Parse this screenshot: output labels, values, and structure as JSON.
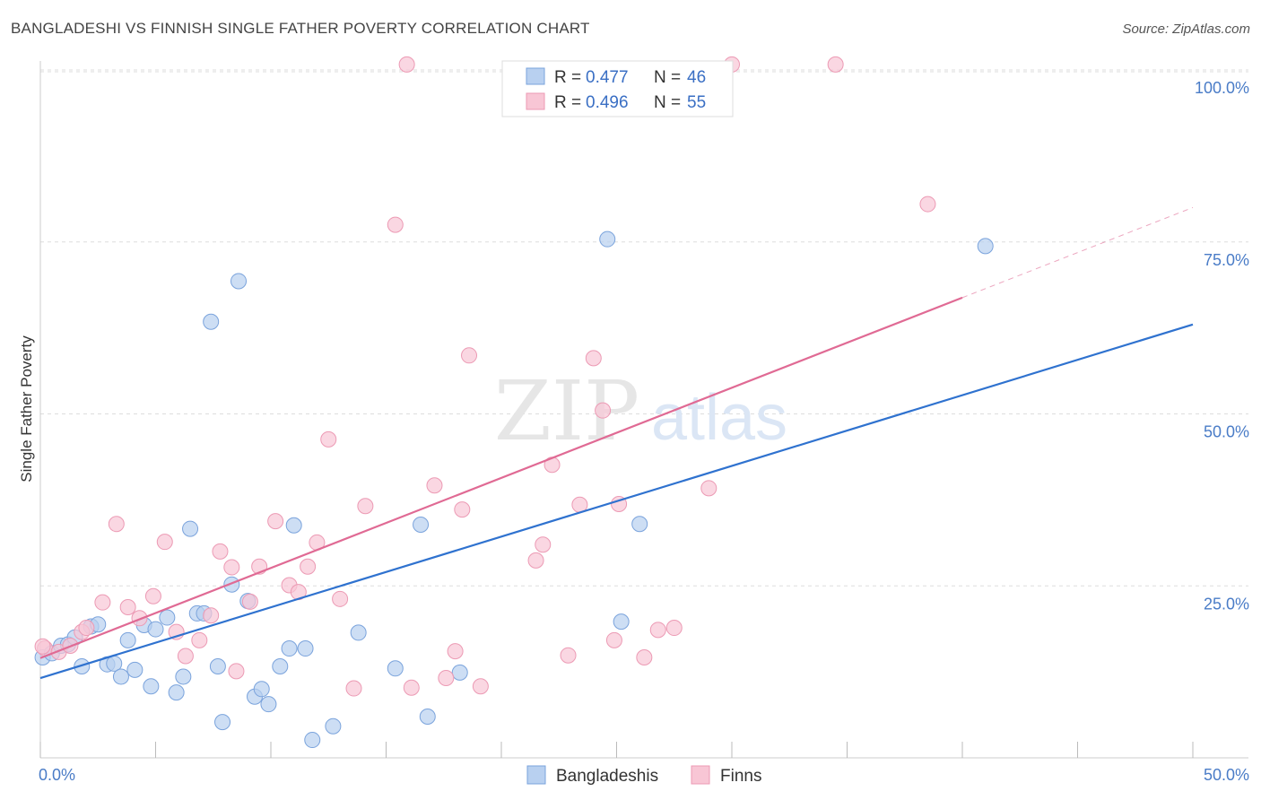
{
  "title": "BANGLADESHI VS FINNISH SINGLE FATHER POVERTY CORRELATION CHART",
  "source": "Source: ZipAtlas.com",
  "watermark": {
    "zip": "ZIP",
    "atlas": "atlas"
  },
  "colors": {
    "blue_fill": "#b8d0f0",
    "blue_stroke": "#7aa3dc",
    "blue_line": "#2f72cf",
    "pink_fill": "#f8c6d5",
    "pink_stroke": "#ec9ab4",
    "pink_line": "#e06a94",
    "axis_text": "#4a7cc7",
    "grid": "#dddddd"
  },
  "legend": {
    "rows": [
      {
        "r_label": "R = ",
        "r_value": "0.477",
        "n_label": "N = ",
        "n_value": "46"
      },
      {
        "r_label": "R = ",
        "r_value": "0.496",
        "n_label": "N = ",
        "n_value": "55"
      }
    ]
  },
  "chart_data": {
    "type": "scatter",
    "title": "BANGLADESHI VS FINNISH SINGLE FATHER POVERTY CORRELATION CHART",
    "xlabel": "",
    "ylabel": "Single Father Poverty",
    "xlim": [
      0,
      50
    ],
    "ylim": [
      0,
      100
    ],
    "x_tick_labels": [
      "0.0%",
      "50.0%"
    ],
    "y_ticks": [
      25,
      50,
      75,
      100
    ],
    "y_tick_labels": [
      "25.0%",
      "50.0%",
      "75.0%",
      "100.0%"
    ],
    "grid": true,
    "legend_position": "top-center",
    "series": [
      {
        "name": "Bangladeshis",
        "color": "#b8d0f0",
        "trend": {
          "x0": 0,
          "y0": 11.6,
          "x1": 50,
          "y1": 63
        },
        "points": [
          [
            0.1,
            14.6
          ],
          [
            0.5,
            15.2
          ],
          [
            0.9,
            16.3
          ],
          [
            1.2,
            16.5
          ],
          [
            1.5,
            17.5
          ],
          [
            1.8,
            13.3
          ],
          [
            2.2,
            19.1
          ],
          [
            2.5,
            19.4
          ],
          [
            2.9,
            13.6
          ],
          [
            3.2,
            13.7
          ],
          [
            3.5,
            11.8
          ],
          [
            3.8,
            17.1
          ],
          [
            4.1,
            12.8
          ],
          [
            4.5,
            19.3
          ],
          [
            4.8,
            10.4
          ],
          [
            5.0,
            18.7
          ],
          [
            5.5,
            20.4
          ],
          [
            5.9,
            9.5
          ],
          [
            6.2,
            11.8
          ],
          [
            6.5,
            33.3
          ],
          [
            6.8,
            21.0
          ],
          [
            7.1,
            21.0
          ],
          [
            7.4,
            63.4
          ],
          [
            7.7,
            13.3
          ],
          [
            7.9,
            5.2
          ],
          [
            8.3,
            25.2
          ],
          [
            8.6,
            69.3
          ],
          [
            9.0,
            22.8
          ],
          [
            9.3,
            8.9
          ],
          [
            9.6,
            10.0
          ],
          [
            9.9,
            7.8
          ],
          [
            10.4,
            13.3
          ],
          [
            10.8,
            15.9
          ],
          [
            11.0,
            33.8
          ],
          [
            11.5,
            15.9
          ],
          [
            11.8,
            2.6
          ],
          [
            12.7,
            4.6
          ],
          [
            13.8,
            18.2
          ],
          [
            15.4,
            13.0
          ],
          [
            16.5,
            33.9
          ],
          [
            16.8,
            6.0
          ],
          [
            18.2,
            12.4
          ],
          [
            24.6,
            75.4
          ],
          [
            25.2,
            19.8
          ],
          [
            26.0,
            34.0
          ],
          [
            41.0,
            74.4
          ]
        ]
      },
      {
        "name": "Finns",
        "color": "#f8c6d5",
        "trend": {
          "x0": 0,
          "y0": 14.5,
          "x1": 50,
          "y1": 80
        },
        "trend_solid_until_x": 40,
        "points": [
          [
            0.2,
            15.9
          ],
          [
            0.8,
            15.4
          ],
          [
            1.3,
            16.3
          ],
          [
            1.8,
            18.3
          ],
          [
            2.0,
            18.9
          ],
          [
            2.7,
            22.6
          ],
          [
            3.3,
            34.0
          ],
          [
            3.8,
            21.9
          ],
          [
            4.3,
            20.3
          ],
          [
            4.9,
            23.5
          ],
          [
            5.4,
            31.4
          ],
          [
            5.9,
            18.3
          ],
          [
            6.3,
            14.8
          ],
          [
            6.9,
            17.1
          ],
          [
            7.4,
            20.7
          ],
          [
            7.8,
            30.0
          ],
          [
            8.3,
            27.7
          ],
          [
            8.5,
            12.6
          ],
          [
            9.1,
            22.7
          ],
          [
            9.5,
            27.8
          ],
          [
            10.2,
            34.4
          ],
          [
            10.8,
            25.1
          ],
          [
            11.2,
            24.1
          ],
          [
            11.6,
            27.8
          ],
          [
            12.0,
            31.3
          ],
          [
            12.5,
            46.3
          ],
          [
            13.0,
            23.1
          ],
          [
            13.6,
            10.1
          ],
          [
            14.1,
            36.6
          ],
          [
            15.4,
            77.5
          ],
          [
            15.9,
            100.8
          ],
          [
            16.1,
            10.2
          ],
          [
            17.1,
            39.6
          ],
          [
            17.6,
            11.6
          ],
          [
            18.0,
            15.5
          ],
          [
            18.3,
            36.1
          ],
          [
            18.6,
            58.5
          ],
          [
            19.1,
            10.4
          ],
          [
            21.5,
            28.7
          ],
          [
            21.8,
            31.0
          ],
          [
            22.2,
            42.6
          ],
          [
            22.9,
            14.9
          ],
          [
            23.4,
            36.8
          ],
          [
            24.0,
            58.1
          ],
          [
            24.4,
            50.5
          ],
          [
            24.9,
            17.1
          ],
          [
            25.1,
            36.9
          ],
          [
            26.2,
            14.6
          ],
          [
            26.8,
            18.6
          ],
          [
            27.5,
            18.9
          ],
          [
            29.0,
            39.2
          ],
          [
            30.0,
            100.8
          ],
          [
            34.5,
            100.8
          ],
          [
            38.5,
            80.5
          ],
          [
            0.1,
            16.2
          ]
        ]
      }
    ]
  }
}
